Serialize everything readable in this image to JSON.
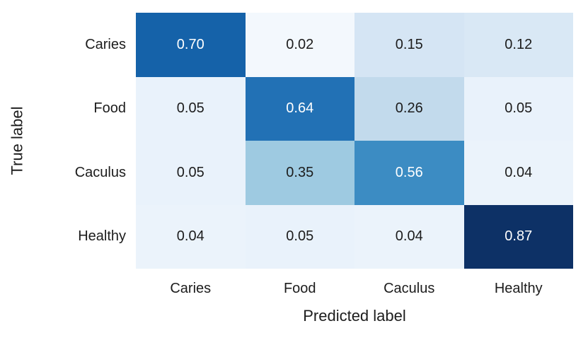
{
  "chart_data": {
    "type": "heatmap",
    "title": "",
    "xlabel": "Predicted label",
    "ylabel": "True label",
    "colormap": "Blues",
    "grid": false,
    "legend": "none",
    "colorbar": false,
    "x_categories": [
      "Caries",
      "Food",
      "Caculus",
      "Healthy"
    ],
    "y_categories": [
      "Caries",
      "Food",
      "Caculus",
      "Healthy"
    ],
    "values": [
      [
        0.7,
        0.02,
        0.15,
        0.12
      ],
      [
        0.05,
        0.64,
        0.26,
        0.05
      ],
      [
        0.05,
        0.35,
        0.56,
        0.04
      ],
      [
        0.04,
        0.05,
        0.04,
        0.87
      ]
    ],
    "value_decimals": 2,
    "cell_colors": [
      [
        "#1562a9",
        "#f3f8fd",
        "#d5e5f4",
        "#d9e8f5"
      ],
      [
        "#e9f2fb",
        "#2271b5",
        "#c2daec",
        "#e9f2fb"
      ],
      [
        "#e9f2fb",
        "#9ecae1",
        "#3c8cc3",
        "#ebf3fb"
      ],
      [
        "#ebf3fb",
        "#e9f2fb",
        "#ebf3fb",
        "#0d3166"
      ]
    ],
    "cell_text_colors": [
      [
        "#ffffff",
        "#1c1c1c",
        "#1c1c1c",
        "#1c1c1c"
      ],
      [
        "#1c1c1c",
        "#ffffff",
        "#1c1c1c",
        "#1c1c1c"
      ],
      [
        "#1c1c1c",
        "#1c1c1c",
        "#ffffff",
        "#1c1c1c"
      ],
      [
        "#1c1c1c",
        "#1c1c1c",
        "#1c1c1c",
        "#ffffff"
      ]
    ],
    "axis_text_color": "#1c1c1c",
    "background_color": "#ffffff"
  }
}
